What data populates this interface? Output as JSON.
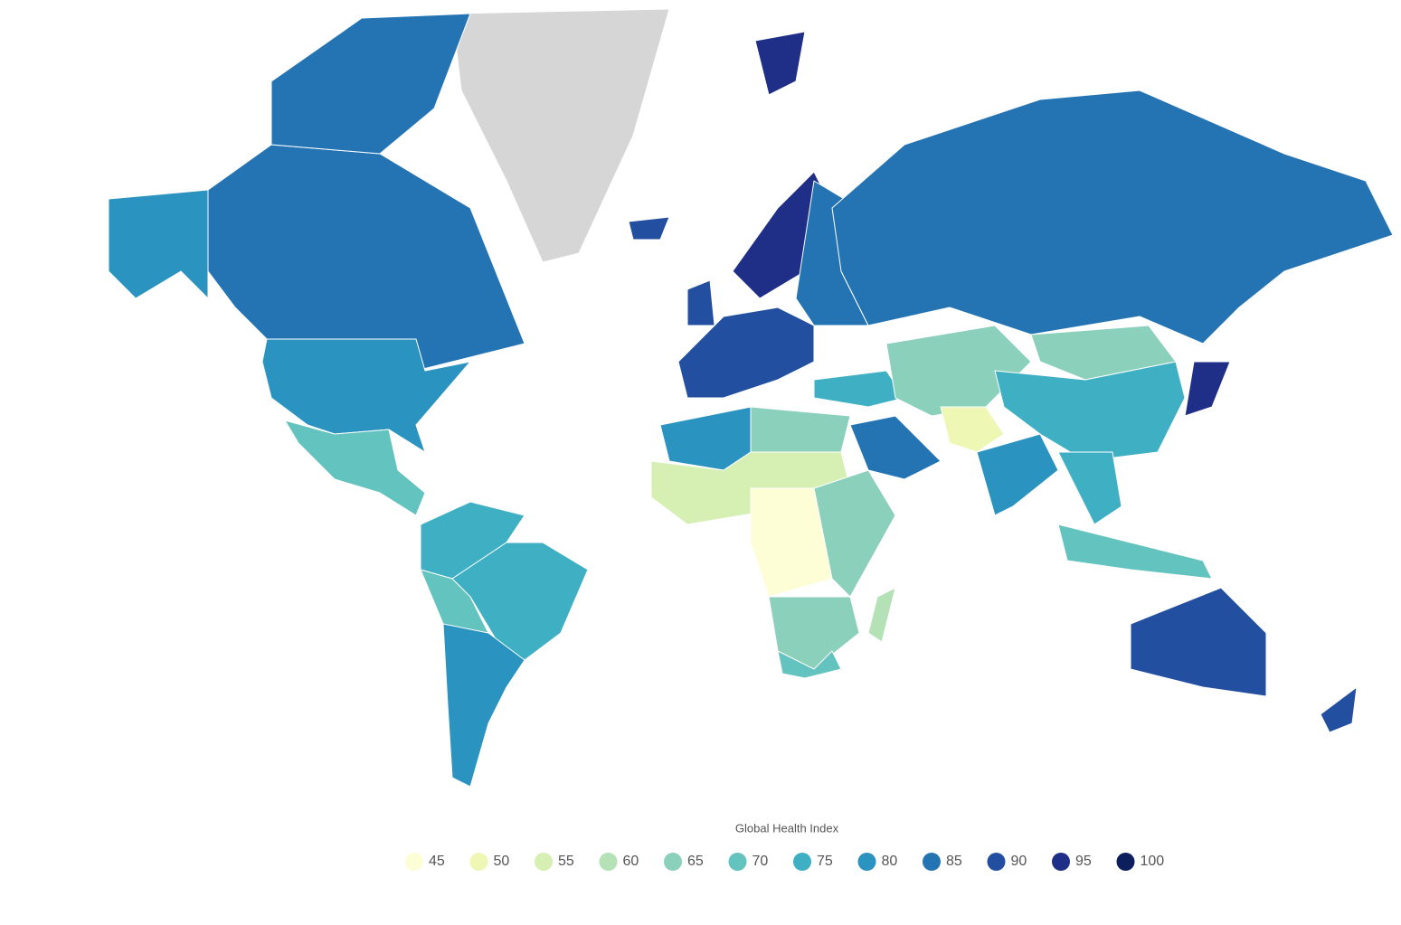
{
  "map": {
    "type": "choropleth",
    "regions": [
      85,
      85,
      80,
      80,
      70,
      75,
      75,
      70,
      80,
      90,
      90,
      95,
      85,
      85,
      75,
      85,
      65,
      65,
      75,
      50,
      80,
      75,
      70,
      95,
      80,
      65,
      55,
      45,
      65,
      65,
      70,
      60,
      90,
      90,
      90,
      95
    ],
    "legend": {
      "title": "Global Health Index",
      "stops": [
        {
          "value": 45,
          "color": "#fdfed5"
        },
        {
          "value": 50,
          "color": "#eef8b4"
        },
        {
          "value": 55,
          "color": "#d6efb3"
        },
        {
          "value": 60,
          "color": "#b4e1b6"
        },
        {
          "value": 65,
          "color": "#8bd0bb"
        },
        {
          "value": 70,
          "color": "#63c3bf"
        },
        {
          "value": 75,
          "color": "#3fb0c4"
        },
        {
          "value": 80,
          "color": "#2b93c0"
        },
        {
          "value": 85,
          "color": "#2474b4"
        },
        {
          "value": 90,
          "color": "#234fa0"
        },
        {
          "value": 95,
          "color": "#1f2f88"
        },
        {
          "value": 100,
          "color": "#0c1e5b"
        }
      ]
    }
  }
}
